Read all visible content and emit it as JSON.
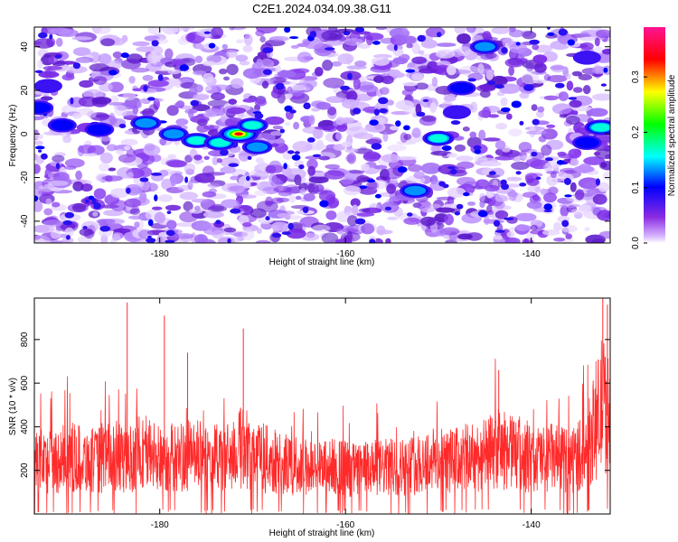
{
  "figure": {
    "title": "C2E1.2024.034.09.38.G11"
  },
  "chart_data": [
    {
      "type": "heatmap",
      "title": "C2E1.2024.034.09.38.G11",
      "xlabel": "Height of straight line (km)",
      "ylabel": "Frequency (Hz)",
      "xlim": [
        -193.5,
        -131.5
      ],
      "ylim": [
        -50,
        49
      ],
      "x_ticks": [
        -180,
        -160,
        -140
      ],
      "y_ticks": [
        -40,
        -20,
        0,
        20,
        40
      ],
      "colorbar": {
        "label": "Normalized spectral amplitude",
        "range": [
          0.0,
          0.39
        ],
        "ticks": [
          0.0,
          0.1,
          0.2,
          0.3
        ],
        "colormap": [
          "#ffffff",
          "#8a2be2",
          "#0000ff",
          "#00ffff",
          "#00ff00",
          "#ffff00",
          "#ff0000",
          "#ff1493"
        ]
      },
      "hotspots": [
        {
          "x": -190.5,
          "y": 4,
          "value": 0.12
        },
        {
          "x": -186.5,
          "y": 2,
          "value": 0.13
        },
        {
          "x": -181.5,
          "y": 5,
          "value": 0.16
        },
        {
          "x": -178.5,
          "y": 0,
          "value": 0.14
        },
        {
          "x": -176.0,
          "y": -3,
          "value": 0.18
        },
        {
          "x": -173.5,
          "y": -4,
          "value": 0.2
        },
        {
          "x": -171.5,
          "y": 0,
          "value": 0.36
        },
        {
          "x": -170.0,
          "y": 4,
          "value": 0.17
        },
        {
          "x": -169.5,
          "y": -6,
          "value": 0.15
        },
        {
          "x": -152.5,
          "y": -26,
          "value": 0.16
        },
        {
          "x": -150.0,
          "y": -2,
          "value": 0.18
        },
        {
          "x": -148.0,
          "y": 10,
          "value": 0.1
        },
        {
          "x": -147.5,
          "y": 21,
          "value": 0.12
        },
        {
          "x": -145.0,
          "y": 40,
          "value": 0.14
        },
        {
          "x": -134.0,
          "y": 35,
          "value": 0.1
        },
        {
          "x": -132.5,
          "y": 3,
          "value": 0.2
        },
        {
          "x": -134.0,
          "y": -4,
          "value": 0.13
        },
        {
          "x": -193.0,
          "y": 12,
          "value": 0.12
        },
        {
          "x": -192.0,
          "y": 22,
          "value": 0.1
        }
      ]
    },
    {
      "type": "line",
      "xlabel": "Height of straight line (km)",
      "ylabel": "SNR (10 * v/v)",
      "xlim": [
        -193.5,
        -131.5
      ],
      "ylim": [
        0,
        990
      ],
      "x_ticks": [
        -180,
        -160,
        -140
      ],
      "y_ticks": [
        200,
        400,
        600,
        800
      ],
      "color": "#ff2a2a",
      "series": [
        {
          "x": [
            -193,
            -191,
            -189,
            -187,
            -185,
            -183.5,
            -182,
            -180,
            -178,
            -176.5,
            -175,
            -173,
            -171,
            -169,
            -167,
            -165,
            -163,
            -161,
            -159,
            -157,
            -155,
            -153,
            -151,
            -149,
            -147,
            -145,
            -143.5,
            -142,
            -140,
            -138,
            -136,
            -134,
            -133,
            -132.3,
            -131.8
          ],
          "values": [
            230,
            250,
            260,
            240,
            270,
            240,
            300,
            250,
            260,
            270,
            260,
            250,
            310,
            260,
            230,
            220,
            210,
            220,
            200,
            210,
            215,
            220,
            250,
            240,
            255,
            270,
            300,
            280,
            250,
            260,
            240,
            300,
            420,
            520,
            450
          ]
        }
      ],
      "peaks": [
        {
          "x": -183.5,
          "y": 970
        },
        {
          "x": -179.5,
          "y": 910
        },
        {
          "x": -177.0,
          "y": 740
        },
        {
          "x": -171.0,
          "y": 850
        },
        {
          "x": -143.5,
          "y": 660
        },
        {
          "x": -132.3,
          "y": 990
        },
        {
          "x": -131.8,
          "y": 960
        }
      ]
    }
  ]
}
